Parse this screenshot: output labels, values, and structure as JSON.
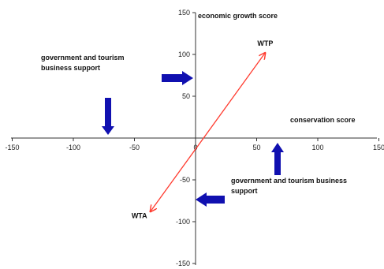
{
  "chart_data": {
    "type": "line",
    "title": "",
    "xlabel": "conservation score",
    "ylabel": "economic growth score",
    "xlim": [
      -150,
      150
    ],
    "ylim": [
      -150,
      150
    ],
    "grid": false,
    "x_ticks": [
      -150,
      -100,
      -50,
      0,
      50,
      100,
      150
    ],
    "y_ticks": [
      150,
      100,
      50,
      0,
      -50,
      -100,
      -150
    ],
    "series": [
      {
        "color": "#ff3b2f",
        "points": [
          {
            "x": -37,
            "y": -88,
            "label": "WTA"
          },
          {
            "x": 57,
            "y": 102,
            "label": "WTP"
          }
        ]
      }
    ],
    "annotations": [
      {
        "id": "ann-top-left",
        "lines": [
          "government and tourism",
          "business support"
        ]
      },
      {
        "id": "ann-bottom-right",
        "lines": [
          "government and tourism business",
          "support"
        ]
      }
    ],
    "arrows": [
      {
        "id": "arrow-right",
        "direction": "right",
        "color": "#1010b0"
      },
      {
        "id": "arrow-down",
        "direction": "down",
        "color": "#1010b0"
      },
      {
        "id": "arrow-up",
        "direction": "up",
        "color": "#1010b0"
      },
      {
        "id": "arrow-left",
        "direction": "left",
        "color": "#1010b0"
      }
    ]
  }
}
